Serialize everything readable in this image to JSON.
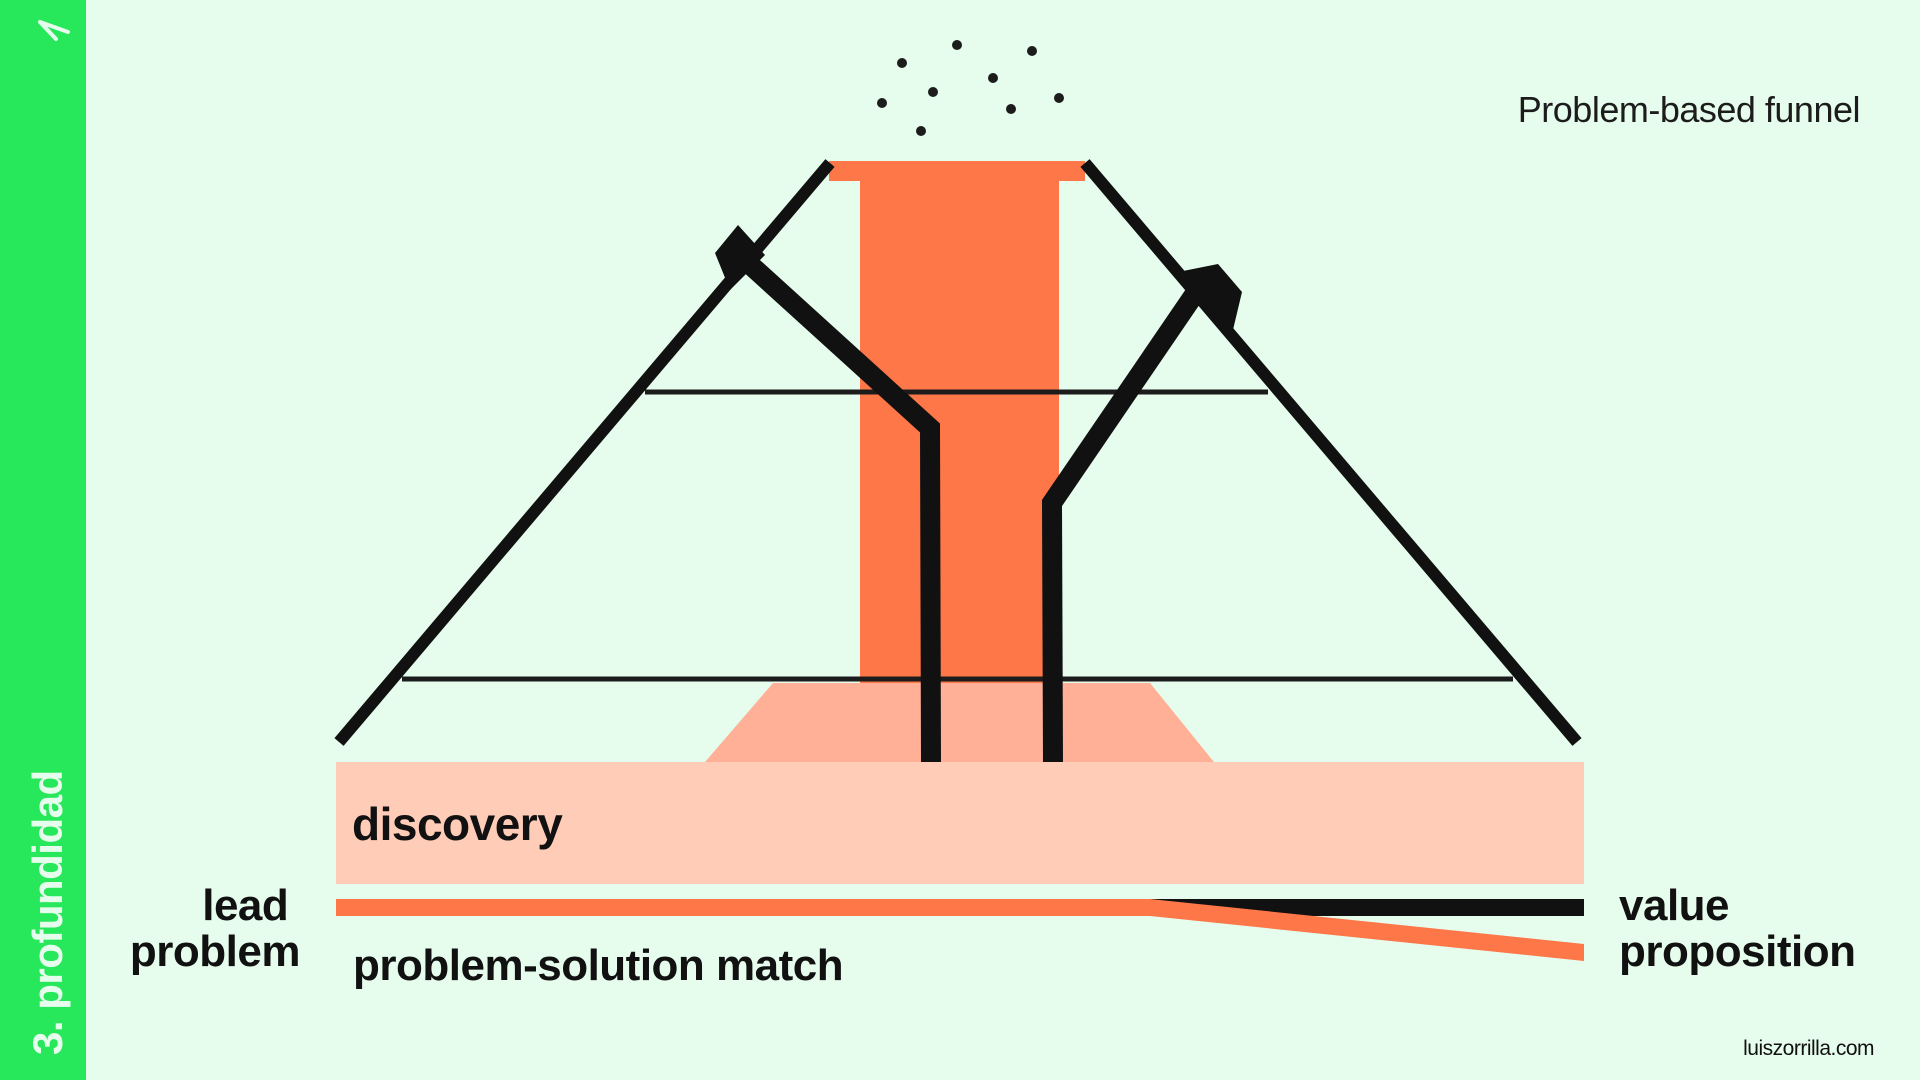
{
  "slide": {
    "section_label": "3. profundidad",
    "title": "Problem-based funnel",
    "footer": "luiszorrilla.com",
    "labels": {
      "discovery": "discovery",
      "lead_line1": "lead",
      "lead_line2": "problem",
      "match": "problem-solution match",
      "value_line1": "value",
      "value_line2": "proposition"
    },
    "icons": {
      "corner_mark": "lambda-mark-icon",
      "left_arrow": "arrow-up-left-icon",
      "right_arrow": "arrow-up-right-icon"
    }
  },
  "colors": {
    "background": "#e6fdee",
    "sidebar": "#27e85a",
    "sidebar_text": "#e6fdee",
    "ink": "#111111",
    "orange": "#fd7748",
    "salmon": "#ffb096",
    "peach": "#ffccb8"
  }
}
